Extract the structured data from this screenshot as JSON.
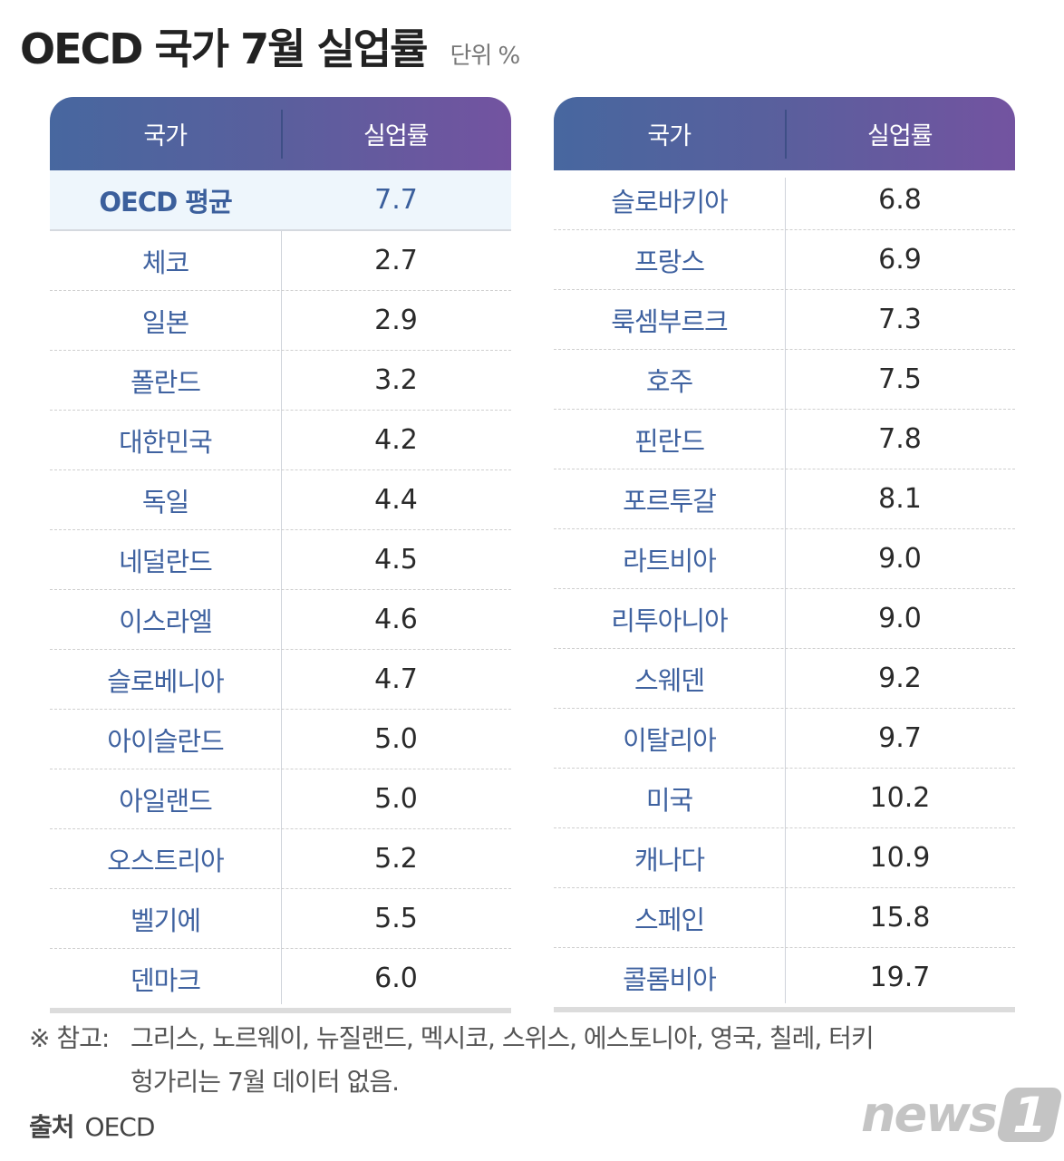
{
  "header": {
    "title": "OECD 국가 7월 실업률",
    "unit": "단위 %"
  },
  "columns": {
    "country": "국가",
    "rate": "실업률"
  },
  "left_table": {
    "rows": [
      {
        "country": "OECD 평균",
        "rate": "7.7",
        "highlight": true
      },
      {
        "country": "체코",
        "rate": "2.7"
      },
      {
        "country": "일본",
        "rate": "2.9"
      },
      {
        "country": "폴란드",
        "rate": "3.2"
      },
      {
        "country": "대한민국",
        "rate": "4.2"
      },
      {
        "country": "독일",
        "rate": "4.4"
      },
      {
        "country": "네덜란드",
        "rate": "4.5"
      },
      {
        "country": "이스라엘",
        "rate": "4.6"
      },
      {
        "country": "슬로베니아",
        "rate": "4.7"
      },
      {
        "country": "아이슬란드",
        "rate": "5.0"
      },
      {
        "country": "아일랜드",
        "rate": "5.0"
      },
      {
        "country": "오스트리아",
        "rate": "5.2"
      },
      {
        "country": "벨기에",
        "rate": "5.5"
      },
      {
        "country": "덴마크",
        "rate": "6.0"
      }
    ]
  },
  "right_table": {
    "rows": [
      {
        "country": "슬로바키아",
        "rate": "6.8"
      },
      {
        "country": "프랑스",
        "rate": "6.9"
      },
      {
        "country": "룩셈부르크",
        "rate": "7.3"
      },
      {
        "country": "호주",
        "rate": "7.5"
      },
      {
        "country": "핀란드",
        "rate": "7.8"
      },
      {
        "country": "포르투갈",
        "rate": "8.1"
      },
      {
        "country": "라트비아",
        "rate": "9.0"
      },
      {
        "country": "리투아니아",
        "rate": "9.0"
      },
      {
        "country": "스웨덴",
        "rate": "9.2"
      },
      {
        "country": "이탈리아",
        "rate": "9.7"
      },
      {
        "country": "미국",
        "rate": "10.2"
      },
      {
        "country": "캐나다",
        "rate": "10.9"
      },
      {
        "country": "스페인",
        "rate": "15.8"
      },
      {
        "country": "콜롬비아",
        "rate": "19.7"
      }
    ]
  },
  "footer": {
    "note_prefix": "※ 참고:",
    "note_line1": "그리스, 노르웨이, 뉴질랜드, 멕시코, 스위스, 에스토니아, 영국, 칠레, 터키",
    "note_line2": "헝가리는 7월 데이터 없음.",
    "source_label": "출처",
    "source_value": "OECD",
    "logo_text": "news",
    "logo_badge": "1"
  },
  "colors": {
    "header_gradient_start": "#47679f",
    "header_gradient_end": "#7353a0",
    "country_text": "#3f62a0",
    "highlight_bg": "#eef6fc"
  },
  "chart_data": {
    "type": "table",
    "title": "OECD 국가 7월 실업률",
    "unit": "%",
    "columns": [
      "국가",
      "실업률"
    ],
    "categories": [
      "OECD 평균",
      "체코",
      "일본",
      "폴란드",
      "대한민국",
      "독일",
      "네덜란드",
      "이스라엘",
      "슬로베니아",
      "아이슬란드",
      "아일랜드",
      "오스트리아",
      "벨기에",
      "덴마크",
      "슬로바키아",
      "프랑스",
      "룩셈부르크",
      "호주",
      "핀란드",
      "포르투갈",
      "라트비아",
      "리투아니아",
      "스웨덴",
      "이탈리아",
      "미국",
      "캐나다",
      "스페인",
      "콜롬비아"
    ],
    "values": [
      7.7,
      2.7,
      2.9,
      3.2,
      4.2,
      4.4,
      4.5,
      4.6,
      4.7,
      5.0,
      5.0,
      5.2,
      5.5,
      6.0,
      6.8,
      6.9,
      7.3,
      7.5,
      7.8,
      8.1,
      9.0,
      9.0,
      9.2,
      9.7,
      10.2,
      10.9,
      15.8,
      19.7
    ],
    "source": "OECD"
  }
}
